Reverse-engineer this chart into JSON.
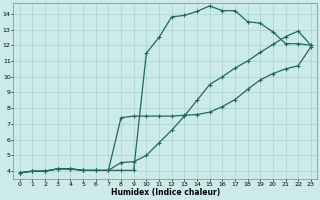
{
  "xlabel": "Humidex (Indice chaleur)",
  "bg_color": "#cceae8",
  "grid_color": "#aad4d2",
  "line_color": "#1e6b5e",
  "xlim": [
    -0.5,
    23.5
  ],
  "ylim": [
    3.5,
    14.7
  ],
  "xticks": [
    0,
    1,
    2,
    3,
    4,
    5,
    6,
    7,
    8,
    9,
    10,
    11,
    12,
    13,
    14,
    15,
    16,
    17,
    18,
    19,
    20,
    21,
    22,
    23
  ],
  "yticks": [
    4,
    5,
    6,
    7,
    8,
    9,
    10,
    11,
    12,
    13,
    14
  ],
  "curve1_x": [
    0,
    1,
    2,
    3,
    4,
    5,
    6,
    7,
    8,
    9,
    10,
    11,
    12,
    13,
    14,
    15,
    16,
    17,
    18,
    19,
    20,
    21,
    22,
    23
  ],
  "curve1_y": [
    3.9,
    4.0,
    4.0,
    4.15,
    4.15,
    4.05,
    4.05,
    4.05,
    4.05,
    4.05,
    11.5,
    12.5,
    13.8,
    13.9,
    14.15,
    14.5,
    14.2,
    14.2,
    13.5,
    13.4,
    12.85,
    12.1,
    12.1,
    12.0
  ],
  "curve2_x": [
    0,
    1,
    2,
    3,
    4,
    5,
    6,
    7,
    8,
    9,
    10,
    11,
    12,
    13,
    14,
    15,
    16,
    17,
    18,
    19,
    20,
    21,
    22,
    23
  ],
  "curve2_y": [
    3.9,
    4.0,
    4.0,
    4.15,
    4.15,
    4.05,
    4.05,
    4.05,
    7.4,
    7.5,
    7.5,
    7.5,
    7.5,
    7.55,
    7.6,
    7.75,
    8.1,
    8.55,
    9.2,
    9.8,
    10.2,
    10.5,
    10.7,
    11.9
  ],
  "curve3_x": [
    0,
    1,
    2,
    3,
    4,
    5,
    6,
    7,
    8,
    9,
    10,
    11,
    12,
    13,
    14,
    15,
    16,
    17,
    18,
    19,
    20,
    21,
    22,
    23
  ],
  "curve3_y": [
    3.9,
    4.0,
    4.0,
    4.15,
    4.15,
    4.05,
    4.05,
    4.05,
    4.55,
    4.6,
    5.0,
    5.8,
    6.6,
    7.5,
    8.5,
    9.5,
    10.0,
    10.55,
    11.0,
    11.55,
    12.05,
    12.55,
    12.9,
    12.0
  ]
}
